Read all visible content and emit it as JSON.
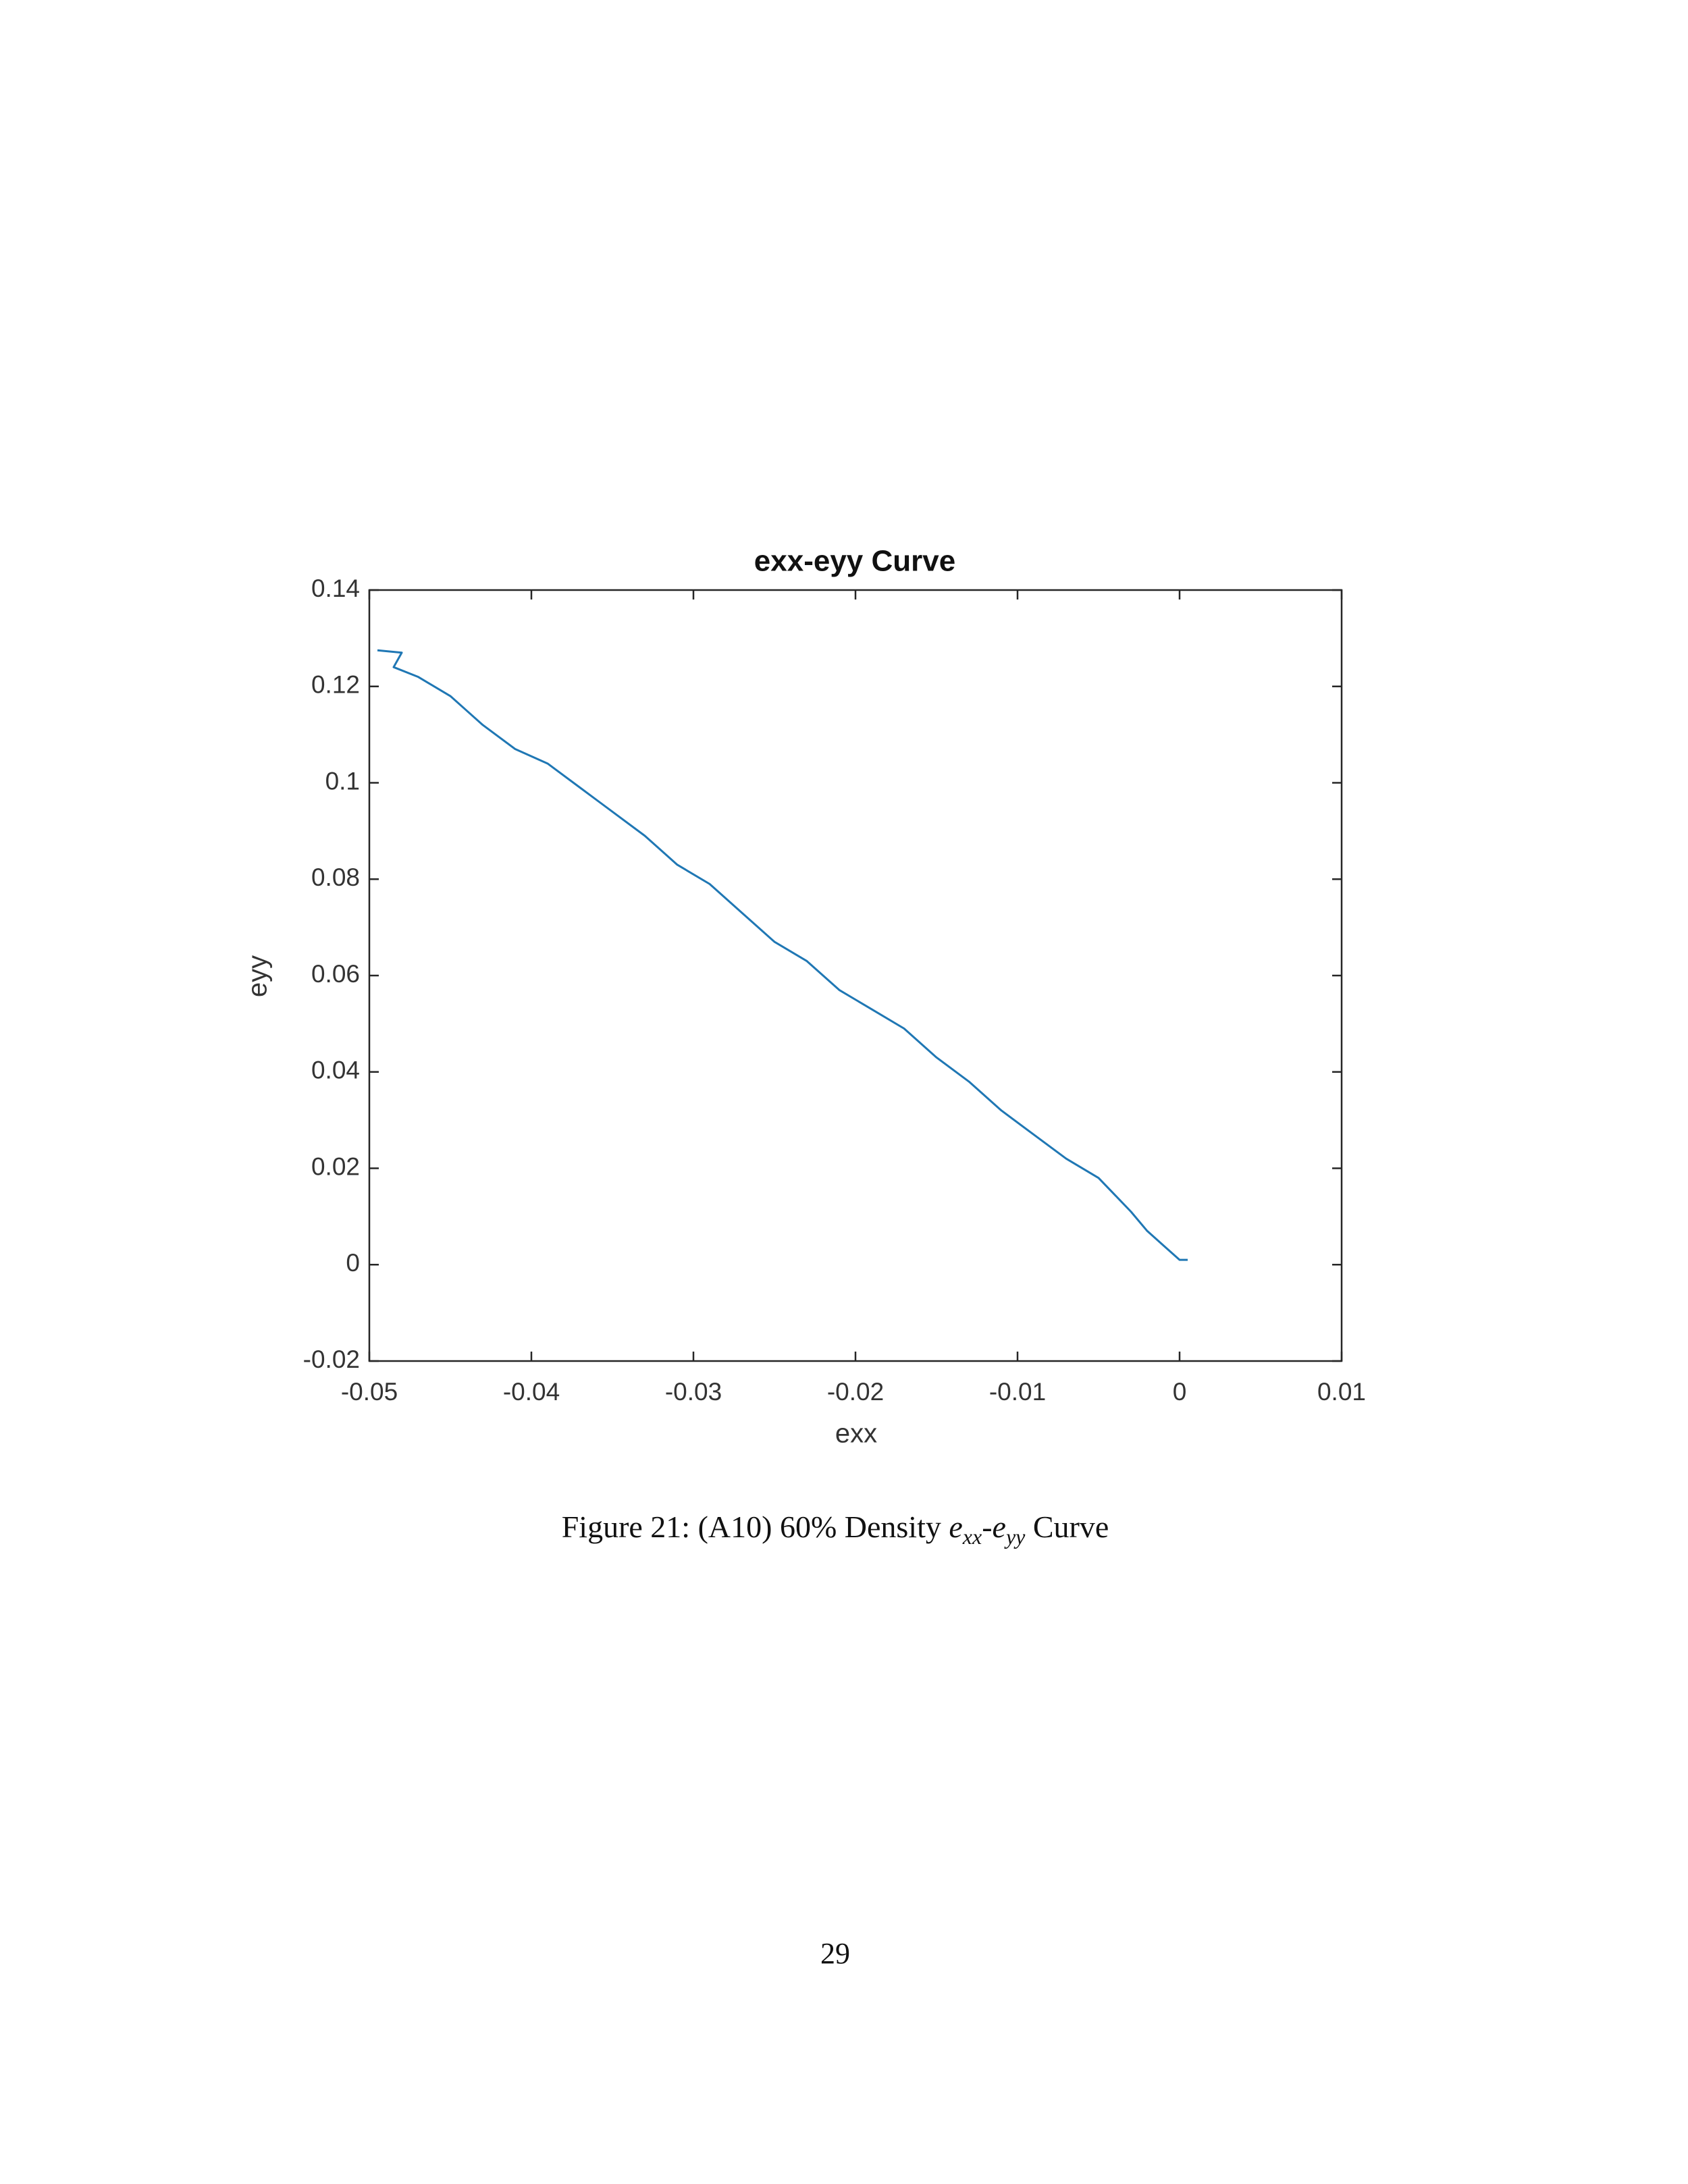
{
  "chart_data": {
    "type": "line",
    "title": "exx-eyy Curve",
    "xlabel": "exx",
    "ylabel": "eyy",
    "x": [
      -0.0495,
      -0.048,
      -0.0485,
      -0.047,
      -0.045,
      -0.044,
      -0.043,
      -0.041,
      -0.039,
      -0.037,
      -0.035,
      -0.033,
      -0.031,
      -0.029,
      -0.027,
      -0.025,
      -0.023,
      -0.021,
      -0.019,
      -0.017,
      -0.015,
      -0.013,
      -0.011,
      -0.009,
      -0.007,
      -0.005,
      -0.003,
      -0.002,
      -0.001,
      0,
      0.0005
    ],
    "series": [
      {
        "name": "eyy",
        "color": "#1f77b4",
        "values": [
          0.1275,
          0.127,
          0.124,
          0.122,
          0.118,
          0.115,
          0.112,
          0.107,
          0.104,
          0.099,
          0.094,
          0.089,
          0.083,
          0.079,
          0.073,
          0.067,
          0.063,
          0.057,
          0.053,
          0.049,
          0.043,
          0.038,
          0.032,
          0.027,
          0.022,
          0.018,
          0.011,
          0.007,
          0.004,
          0.001,
          0.001
        ]
      }
    ],
    "xlim": [
      -0.05,
      0.01
    ],
    "xticks": [
      -0.05,
      -0.04,
      -0.03,
      -0.02,
      -0.01,
      0,
      0.01
    ],
    "ylim": [
      -0.02,
      0.14
    ],
    "yticks": [
      -0.02,
      0,
      0.02,
      0.04,
      0.06,
      0.08,
      0.1,
      0.12,
      0.14
    ],
    "grid": false
  },
  "caption": {
    "label": "Figure 21:",
    "text": "(A10) 60% Density",
    "symbol1": "e",
    "sub1": "xx",
    "separator": "-",
    "symbol2": "e",
    "sub2": "yy",
    "suffix": "Curve"
  },
  "page_number": "29"
}
